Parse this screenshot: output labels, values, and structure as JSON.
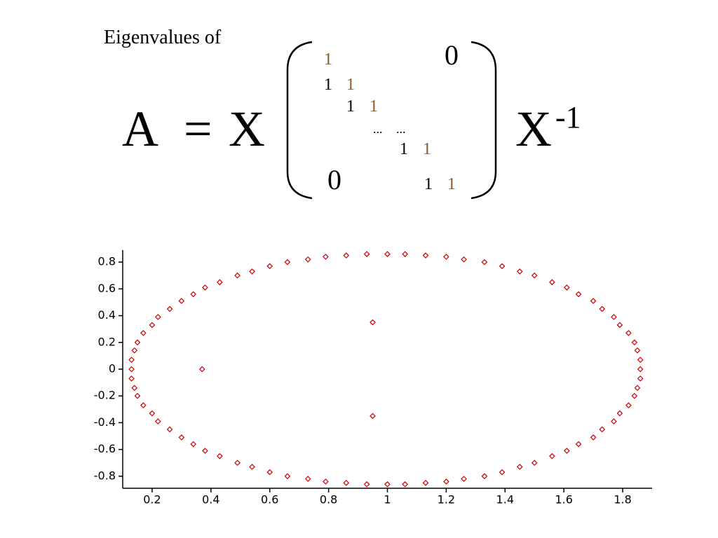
{
  "formula": {
    "caption": "Eigenvalues of",
    "lhs": "A",
    "equals": "=",
    "left_factor": "X",
    "right_factor": "X",
    "exponent": "-1",
    "matrix": [
      "1",
      "0",
      "1",
      "1",
      "1",
      "1",
      "...",
      "...",
      "1",
      "1",
      "0",
      "1",
      "1"
    ]
  },
  "chart_data": {
    "type": "scatter",
    "color": "#cc0000",
    "x": [
      1.86,
      1.86,
      1.85,
      1.84,
      1.82,
      1.79,
      1.77,
      1.73,
      1.7,
      1.65,
      1.61,
      1.56,
      1.5,
      1.45,
      1.39,
      1.33,
      1.26,
      1.2,
      1.13,
      1.06,
      1.0,
      0.93,
      0.86,
      0.79,
      0.73,
      0.66,
      0.6,
      0.54,
      0.49,
      0.43,
      0.38,
      0.34,
      0.3,
      0.26,
      0.22,
      0.2,
      0.17,
      0.15,
      0.14,
      0.13,
      0.13,
      0.13,
      0.14,
      0.15,
      0.17,
      0.2,
      0.22,
      0.26,
      0.3,
      0.34,
      0.38,
      0.43,
      0.49,
      0.54,
      0.6,
      0.66,
      0.73,
      0.79,
      0.86,
      0.93,
      1.0,
      1.06,
      1.13,
      1.2,
      1.26,
      1.33,
      1.39,
      1.45,
      1.5,
      1.56,
      1.61,
      1.65,
      1.7,
      1.73,
      1.77,
      1.79,
      1.82,
      1.84,
      1.85,
      1.86,
      0.37,
      0.95,
      0.95
    ],
    "y": [
      0,
      0.07,
      0.14,
      0.2,
      0.27,
      0.33,
      0.39,
      0.45,
      0.51,
      0.56,
      0.61,
      0.65,
      0.7,
      0.73,
      0.77,
      0.8,
      0.82,
      0.84,
      0.85,
      0.86,
      0.86,
      0.86,
      0.85,
      0.84,
      0.82,
      0.8,
      0.77,
      0.73,
      0.7,
      0.65,
      0.61,
      0.56,
      0.51,
      0.45,
      0.39,
      0.33,
      0.27,
      0.2,
      0.14,
      0.07,
      0,
      -0.07,
      -0.14,
      -0.2,
      -0.27,
      -0.33,
      -0.39,
      -0.45,
      -0.51,
      -0.56,
      -0.61,
      -0.65,
      -0.7,
      -0.73,
      -0.77,
      -0.8,
      -0.82,
      -0.84,
      -0.85,
      -0.86,
      -0.86,
      -0.86,
      -0.85,
      -0.84,
      -0.82,
      -0.8,
      -0.77,
      -0.73,
      -0.7,
      -0.65,
      -0.61,
      -0.56,
      -0.51,
      -0.45,
      -0.39,
      -0.33,
      -0.27,
      -0.2,
      -0.14,
      -0.07,
      0,
      0.35,
      -0.35
    ],
    "xlim": [
      0.1,
      1.9
    ],
    "ylim": [
      -0.89,
      0.89
    ],
    "xticks": [
      0.2,
      0.4,
      0.6,
      0.8,
      1,
      1.2,
      1.4,
      1.6,
      1.8
    ],
    "yticks": [
      -0.8,
      -0.6,
      -0.4,
      -0.2,
      0,
      0.2,
      0.4,
      0.6,
      0.8
    ]
  }
}
